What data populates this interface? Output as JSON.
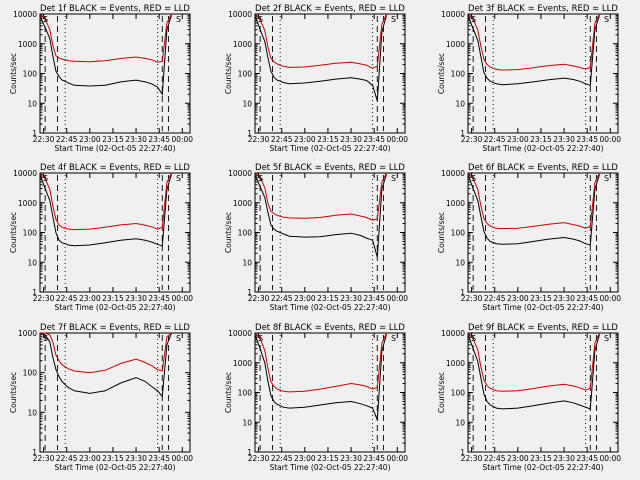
{
  "chart_data": [
    {
      "type": "line",
      "title": "Det 1f BLACK = Events, RED = LLD",
      "xlabel": "Start Time (02-Oct-05 22:27:40)",
      "ylabel": "Counts/sec",
      "yscale": "log",
      "ylim": [
        1,
        10000
      ],
      "xlim": [
        "22:27:40",
        "00:05:00"
      ],
      "x_ticks": [
        "22:30",
        "22:45",
        "23:00",
        "23:15",
        "23:30",
        "23:45",
        "00:00"
      ],
      "y_ticks": [
        "1",
        "10",
        "100",
        "1000",
        "10000"
      ],
      "grid": false,
      "annotations": [
        "S",
        "S"
      ],
      "x": [
        "22:28",
        "22:31",
        "22:34",
        "22:36",
        "22:38",
        "22:40",
        "22:42",
        "22:44",
        "22:46",
        "22:50",
        "23:00",
        "23:10",
        "23:20",
        "23:30",
        "23:36",
        "23:40",
        "23:44",
        "23:47",
        "23:50",
        "23:53"
      ],
      "series": [
        {
          "name": "Events",
          "color": "#000000",
          "values": [
            8000,
            3500,
            1500,
            400,
            120,
            80,
            60,
            55,
            48,
            40,
            38,
            40,
            52,
            60,
            52,
            45,
            35,
            20,
            3000,
            9000
          ]
        },
        {
          "name": "LLD",
          "color": "#d00000",
          "values": [
            9500,
            7000,
            3000,
            900,
            400,
            330,
            300,
            290,
            270,
            260,
            250,
            270,
            320,
            360,
            320,
            290,
            240,
            260,
            5000,
            10000
          ]
        }
      ]
    },
    {
      "type": "line",
      "title": "Det 2f BLACK = Events, RED = LLD",
      "xlabel": "Start Time (02-Oct-05 22:27:40)",
      "ylabel": "Counts/sec",
      "yscale": "log",
      "ylim": [
        1,
        10000
      ],
      "xlim": [
        "22:27:40",
        "00:05:00"
      ],
      "x_ticks": [
        "22:30",
        "22:45",
        "23:00",
        "23:15",
        "23:30",
        "23:45",
        "00:00"
      ],
      "y_ticks": [
        "1",
        "10",
        "100",
        "1000",
        "10000"
      ],
      "grid": false,
      "annotations": [
        "S",
        "S"
      ],
      "x": [
        "22:28",
        "22:31",
        "22:34",
        "22:36",
        "22:38",
        "22:40",
        "22:42",
        "22:44",
        "22:46",
        "22:50",
        "23:00",
        "23:10",
        "23:20",
        "23:30",
        "23:36",
        "23:40",
        "23:44",
        "23:47",
        "23:50",
        "23:53"
      ],
      "series": [
        {
          "name": "Events",
          "color": "#000000",
          "values": [
            8000,
            3000,
            1200,
            350,
            120,
            75,
            60,
            55,
            50,
            45,
            48,
            55,
            65,
            72,
            65,
            58,
            40,
            12,
            2500,
            9000
          ]
        },
        {
          "name": "LLD",
          "color": "#d00000",
          "values": [
            9500,
            6500,
            2800,
            800,
            330,
            250,
            210,
            190,
            175,
            160,
            165,
            190,
            220,
            240,
            210,
            190,
            150,
            180,
            4500,
            10000
          ]
        }
      ]
    },
    {
      "type": "line",
      "title": "Det 3f BLACK = Events, RED = LLD",
      "xlabel": "Start Time (02-Oct-05 22:27:40)",
      "ylabel": "Counts/sec",
      "yscale": "log",
      "ylim": [
        1,
        10000
      ],
      "xlim": [
        "22:27:40",
        "00:05:00"
      ],
      "x_ticks": [
        "22:30",
        "22:45",
        "23:00",
        "23:15",
        "23:30",
        "23:45",
        "00:00"
      ],
      "y_ticks": [
        "1",
        "10",
        "100",
        "1000",
        "10000"
      ],
      "grid": false,
      "annotations": [
        "S",
        "S"
      ],
      "x": [
        "22:28",
        "22:31",
        "22:34",
        "22:36",
        "22:38",
        "22:40",
        "22:42",
        "22:44",
        "22:46",
        "22:50",
        "23:00",
        "23:10",
        "23:20",
        "23:30",
        "23:36",
        "23:40",
        "23:44",
        "23:47",
        "23:50",
        "23:53"
      ],
      "series": [
        {
          "name": "Events",
          "color": "#000000",
          "values": [
            8000,
            3200,
            1300,
            380,
            110,
            70,
            55,
            50,
            45,
            42,
            45,
            52,
            62,
            70,
            63,
            55,
            45,
            40,
            3000,
            9000
          ]
        },
        {
          "name": "LLD",
          "color": "#d00000",
          "values": [
            9500,
            6800,
            2900,
            850,
            300,
            200,
            165,
            150,
            140,
            130,
            135,
            155,
            185,
            205,
            180,
            160,
            140,
            160,
            5000,
            10000
          ]
        }
      ]
    },
    {
      "type": "line",
      "title": "Det 4f BLACK = Events, RED = LLD",
      "xlabel": "Start Time (02-Oct-05 22:27:40)",
      "ylabel": "Counts/sec",
      "yscale": "log",
      "ylim": [
        1,
        10000
      ],
      "xlim": [
        "22:27:40",
        "00:05:00"
      ],
      "x_ticks": [
        "22:30",
        "22:45",
        "23:00",
        "23:15",
        "23:30",
        "23:45",
        "00:00"
      ],
      "y_ticks": [
        "1",
        "10",
        "100",
        "1000",
        "10000"
      ],
      "grid": false,
      "annotations": [
        "S",
        "S"
      ],
      "x": [
        "22:28",
        "22:31",
        "22:34",
        "22:36",
        "22:38",
        "22:40",
        "22:42",
        "22:44",
        "22:46",
        "22:50",
        "23:00",
        "23:10",
        "23:20",
        "23:30",
        "23:36",
        "23:40",
        "23:44",
        "23:47",
        "23:50",
        "23:53"
      ],
      "series": [
        {
          "name": "Events",
          "color": "#000000",
          "values": [
            8000,
            3000,
            1200,
            350,
            100,
            55,
            45,
            42,
            38,
            36,
            38,
            45,
            55,
            62,
            55,
            48,
            40,
            35,
            2800,
            9000
          ]
        },
        {
          "name": "LLD",
          "color": "#d00000",
          "values": [
            9500,
            6500,
            2800,
            800,
            280,
            180,
            150,
            140,
            130,
            125,
            130,
            150,
            180,
            200,
            175,
            155,
            130,
            150,
            4800,
            10000
          ]
        }
      ]
    },
    {
      "type": "line",
      "title": "Det 5f BLACK = Events, RED = LLD",
      "xlabel": "Start Time (02-Oct-05 22:27:40)",
      "ylabel": "Counts/sec",
      "yscale": "log",
      "ylim": [
        1,
        10000
      ],
      "xlim": [
        "22:27:40",
        "00:05:00"
      ],
      "x_ticks": [
        "22:30",
        "22:45",
        "23:00",
        "23:15",
        "23:30",
        "23:45",
        "00:00"
      ],
      "y_ticks": [
        "1",
        "10",
        "100",
        "1000",
        "10000"
      ],
      "grid": false,
      "annotations": [
        "S",
        "S"
      ],
      "x": [
        "22:28",
        "22:31",
        "22:34",
        "22:36",
        "22:38",
        "22:40",
        "22:42",
        "22:44",
        "22:46",
        "22:50",
        "23:00",
        "23:10",
        "23:20",
        "23:30",
        "23:36",
        "23:40",
        "23:44",
        "23:47",
        "23:50",
        "23:53"
      ],
      "series": [
        {
          "name": "Events",
          "color": "#000000",
          "values": [
            8000,
            3500,
            1500,
            500,
            180,
            130,
            110,
            100,
            90,
            75,
            70,
            72,
            85,
            95,
            80,
            65,
            55,
            15,
            3000,
            9000
          ]
        },
        {
          "name": "LLD",
          "color": "#d00000",
          "values": [
            9500,
            7200,
            3200,
            1000,
            520,
            430,
            380,
            350,
            330,
            310,
            300,
            320,
            380,
            420,
            360,
            320,
            260,
            290,
            5000,
            10000
          ]
        }
      ]
    },
    {
      "type": "line",
      "title": "Det 6f BLACK = Events, RED = LLD",
      "xlabel": "Start Time (02-Oct-05 22:27:40)",
      "ylabel": "Counts/sec",
      "yscale": "log",
      "ylim": [
        1,
        10000
      ],
      "xlim": [
        "22:27:40",
        "00:05:00"
      ],
      "x_ticks": [
        "22:30",
        "22:45",
        "23:00",
        "23:15",
        "23:30",
        "23:45",
        "00:00"
      ],
      "y_ticks": [
        "1",
        "10",
        "100",
        "1000",
        "10000"
      ],
      "grid": false,
      "annotations": [
        "S",
        "S"
      ],
      "x": [
        "22:28",
        "22:31",
        "22:34",
        "22:36",
        "22:38",
        "22:40",
        "22:42",
        "22:44",
        "22:46",
        "22:50",
        "23:00",
        "23:10",
        "23:20",
        "23:30",
        "23:36",
        "23:40",
        "23:44",
        "23:47",
        "23:50",
        "23:53"
      ],
      "series": [
        {
          "name": "Events",
          "color": "#000000",
          "values": [
            8000,
            3000,
            1200,
            360,
            110,
            65,
            50,
            46,
            42,
            40,
            42,
            50,
            60,
            68,
            60,
            52,
            42,
            38,
            2800,
            9000
          ]
        },
        {
          "name": "LLD",
          "color": "#d00000",
          "values": [
            9500,
            6500,
            2800,
            820,
            300,
            200,
            165,
            150,
            140,
            135,
            140,
            160,
            190,
            215,
            185,
            165,
            140,
            160,
            4800,
            10000
          ]
        }
      ]
    },
    {
      "type": "line",
      "title": "Det 7f BLACK = Events, RED = LLD",
      "xlabel": "Start Time (02-Oct-05 22:27:40)",
      "ylabel": "Counts/sec",
      "yscale": "log",
      "ylim": [
        1,
        1000
      ],
      "xlim": [
        "22:27:40",
        "00:05:00"
      ],
      "x_ticks": [
        "22:30",
        "22:45",
        "23:00",
        "23:15",
        "23:30",
        "23:45",
        "00:00"
      ],
      "y_ticks": [
        "1",
        "10",
        "100",
        "1000"
      ],
      "grid": false,
      "annotations": [
        "S",
        "S"
      ],
      "x": [
        "22:28",
        "22:31",
        "22:34",
        "22:36",
        "22:38",
        "22:40",
        "22:42",
        "22:44",
        "22:46",
        "22:50",
        "23:00",
        "23:10",
        "23:20",
        "23:30",
        "23:36",
        "23:40",
        "23:44",
        "23:47",
        "23:50",
        "23:53"
      ],
      "series": [
        {
          "name": "Events",
          "color": "#000000",
          "values": [
            1000,
            900,
            600,
            250,
            120,
            80,
            60,
            50,
            42,
            35,
            30,
            35,
            55,
            75,
            60,
            45,
            35,
            25,
            500,
            1000
          ]
        },
        {
          "name": "LLD",
          "color": "#d00000",
          "values": [
            1000,
            1000,
            900,
            600,
            280,
            200,
            160,
            140,
            125,
            110,
            100,
            115,
            170,
            220,
            180,
            150,
            120,
            110,
            800,
            1000
          ]
        }
      ]
    },
    {
      "type": "line",
      "title": "Det 8f BLACK = Events, RED = LLD",
      "xlabel": "Start Time (02-Oct-05 22:27:40)",
      "ylabel": "Counts/sec",
      "yscale": "log",
      "ylim": [
        1,
        10000
      ],
      "xlim": [
        "22:27:40",
        "00:05:00"
      ],
      "x_ticks": [
        "22:30",
        "22:45",
        "23:00",
        "23:15",
        "23:30",
        "23:45",
        "00:00"
      ],
      "y_ticks": [
        "1",
        "10",
        "100",
        "1000",
        "10000"
      ],
      "grid": false,
      "annotations": [
        "S",
        "S"
      ],
      "x": [
        "22:28",
        "22:31",
        "22:34",
        "22:36",
        "22:38",
        "22:40",
        "22:42",
        "22:44",
        "22:46",
        "22:50",
        "23:00",
        "23:10",
        "23:20",
        "23:30",
        "23:36",
        "23:40",
        "23:44",
        "23:47",
        "23:50",
        "23:53"
      ],
      "series": [
        {
          "name": "Events",
          "color": "#000000",
          "values": [
            8000,
            3000,
            1000,
            250,
            80,
            50,
            40,
            36,
            32,
            30,
            32,
            38,
            45,
            50,
            42,
            36,
            30,
            12,
            2500,
            9000
          ]
        },
        {
          "name": "LLD",
          "color": "#d00000",
          "values": [
            9500,
            6500,
            2600,
            700,
            230,
            160,
            130,
            120,
            110,
            105,
            110,
            130,
            160,
            200,
            180,
            160,
            130,
            150,
            4500,
            10000
          ]
        }
      ]
    },
    {
      "type": "line",
      "title": "Det 9f BLACK = Events, RED = LLD",
      "xlabel": "Start Time (02-Oct-05 22:27:40)",
      "ylabel": "Counts/sec",
      "yscale": "log",
      "ylim": [
        1,
        10000
      ],
      "xlim": [
        "22:27:40",
        "00:05:00"
      ],
      "x_ticks": [
        "22:30",
        "22:45",
        "23:00",
        "23:15",
        "23:30",
        "23:45",
        "00:00"
      ],
      "y_ticks": [
        "1",
        "10",
        "100",
        "1000",
        "10000"
      ],
      "grid": false,
      "annotations": [
        "S",
        "S"
      ],
      "x": [
        "22:28",
        "22:31",
        "22:34",
        "22:36",
        "22:38",
        "22:40",
        "22:42",
        "22:44",
        "22:46",
        "22:50",
        "23:00",
        "23:10",
        "23:20",
        "23:30",
        "23:36",
        "23:40",
        "23:44",
        "23:47",
        "23:50",
        "23:53"
      ],
      "series": [
        {
          "name": "Events",
          "color": "#000000",
          "values": [
            8000,
            3000,
            1100,
            320,
            90,
            50,
            38,
            34,
            30,
            28,
            30,
            36,
            44,
            52,
            45,
            38,
            32,
            28,
            2600,
            9000
          ]
        },
        {
          "name": "LLD",
          "color": "#d00000",
          "values": [
            9500,
            6500,
            2700,
            750,
            260,
            170,
            140,
            125,
            115,
            110,
            115,
            135,
            165,
            190,
            165,
            145,
            120,
            140,
            4600,
            10000
          ]
        }
      ]
    }
  ]
}
